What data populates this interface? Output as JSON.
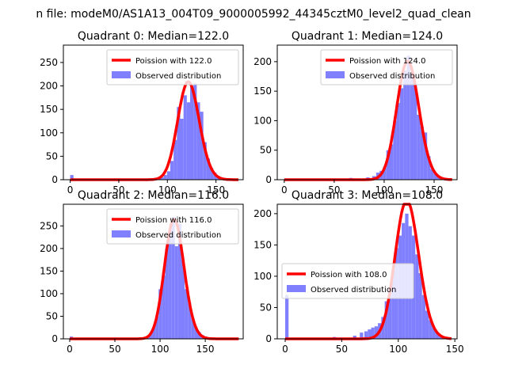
{
  "figure": {
    "suptitle": "n file: modeM0/AS1A13_004T09_9000005992_44345cztM0_level2_quad_clean"
  },
  "colors": {
    "hist": "#8080ff",
    "curve": "#ff0000",
    "axis": "#000000"
  },
  "chart_data": [
    {
      "type": "histogram+line",
      "title": "Quadrant 0: Median=122.0",
      "xlim": [
        -7,
        178
      ],
      "ylim": [
        0,
        287
      ],
      "xticks": [
        0,
        50,
        100,
        150
      ],
      "yticks": [
        0,
        50,
        100,
        150,
        200,
        250
      ],
      "legend_position": "upper right",
      "series": [
        {
          "name": "Poission with 122.0",
          "kind": "line",
          "mean": 122
        },
        {
          "name": "Observed distribution",
          "kind": "hist",
          "bin_width": 3.4,
          "bins": [
            {
              "x": 0,
              "y": 10
            },
            {
              "x": 86,
              "y": 2
            },
            {
              "x": 89.4,
              "y": 3
            },
            {
              "x": 92.8,
              "y": 5
            },
            {
              "x": 96.2,
              "y": 10
            },
            {
              "x": 99.6,
              "y": 18
            },
            {
              "x": 103,
              "y": 40
            },
            {
              "x": 106.4,
              "y": 85
            },
            {
              "x": 109.8,
              "y": 155
            },
            {
              "x": 113.2,
              "y": 130
            },
            {
              "x": 116.6,
              "y": 180
            },
            {
              "x": 120,
              "y": 165
            },
            {
              "x": 123.4,
              "y": 200
            },
            {
              "x": 126.8,
              "y": 205
            },
            {
              "x": 130.2,
              "y": 165
            },
            {
              "x": 133.6,
              "y": 145
            },
            {
              "x": 137,
              "y": 80
            },
            {
              "x": 140.4,
              "y": 45
            },
            {
              "x": 143.8,
              "y": 25
            },
            {
              "x": 147.2,
              "y": 15
            },
            {
              "x": 150.6,
              "y": 8
            },
            {
              "x": 154,
              "y": 5
            },
            {
              "x": 157.4,
              "y": 3
            },
            {
              "x": 160.8,
              "y": 2
            },
            {
              "x": 164.2,
              "y": 1
            }
          ]
        }
      ]
    },
    {
      "type": "histogram+line",
      "title": "Quadrant 1: Median=124.0",
      "xlim": [
        -7,
        173
      ],
      "ylim": [
        0,
        228
      ],
      "xticks": [
        0,
        50,
        100,
        150
      ],
      "yticks": [
        0,
        50,
        100,
        150,
        200
      ],
      "legend_position": "upper right",
      "series": [
        {
          "name": "Poission with 124.0",
          "kind": "line",
          "mean": 124
        },
        {
          "name": "Observed distribution",
          "kind": "hist",
          "bin_width": 3.4,
          "bins": [
            {
              "x": 65,
              "y": 3
            },
            {
              "x": 76,
              "y": 2
            },
            {
              "x": 82,
              "y": 4
            },
            {
              "x": 88,
              "y": 6
            },
            {
              "x": 92,
              "y": 12
            },
            {
              "x": 95.4,
              "y": 15
            },
            {
              "x": 98.8,
              "y": 22
            },
            {
              "x": 102.2,
              "y": 50
            },
            {
              "x": 105.6,
              "y": 60
            },
            {
              "x": 109,
              "y": 100
            },
            {
              "x": 112.4,
              "y": 130
            },
            {
              "x": 115.8,
              "y": 155
            },
            {
              "x": 119.2,
              "y": 185
            },
            {
              "x": 122.6,
              "y": 210
            },
            {
              "x": 126,
              "y": 180
            },
            {
              "x": 129.4,
              "y": 160
            },
            {
              "x": 132.8,
              "y": 110
            },
            {
              "x": 136.2,
              "y": 90
            },
            {
              "x": 139.6,
              "y": 80
            },
            {
              "x": 143,
              "y": 40
            },
            {
              "x": 146.4,
              "y": 18
            },
            {
              "x": 149.8,
              "y": 10
            },
            {
              "x": 153.2,
              "y": 5
            },
            {
              "x": 156.6,
              "y": 2
            }
          ]
        }
      ]
    },
    {
      "type": "histogram+line",
      "title": "Quadrant 2: Median=116.0",
      "xlim": [
        -7,
        192
      ],
      "ylim": [
        0,
        298
      ],
      "xticks": [
        0,
        50,
        100,
        150
      ],
      "yticks": [
        0,
        50,
        100,
        150,
        200,
        250
      ],
      "legend_position": "upper right",
      "series": [
        {
          "name": "Poission with 116.0",
          "kind": "line",
          "mean": 116
        },
        {
          "name": "Observed distribution",
          "kind": "hist",
          "bin_width": 3.6,
          "bins": [
            {
              "x": 0,
              "y": 5
            },
            {
              "x": 80,
              "y": 3
            },
            {
              "x": 84,
              "y": 5
            },
            {
              "x": 87.6,
              "y": 10
            },
            {
              "x": 91.2,
              "y": 25
            },
            {
              "x": 94.8,
              "y": 50
            },
            {
              "x": 98.4,
              "y": 110
            },
            {
              "x": 102,
              "y": 140
            },
            {
              "x": 105.6,
              "y": 200
            },
            {
              "x": 109.2,
              "y": 240
            },
            {
              "x": 112.8,
              "y": 270
            },
            {
              "x": 116.4,
              "y": 205
            },
            {
              "x": 120,
              "y": 255
            },
            {
              "x": 123.6,
              "y": 175
            },
            {
              "x": 127.2,
              "y": 110
            },
            {
              "x": 130.8,
              "y": 80
            },
            {
              "x": 134.4,
              "y": 45
            },
            {
              "x": 138,
              "y": 25
            },
            {
              "x": 141.6,
              "y": 15
            },
            {
              "x": 145.2,
              "y": 8
            },
            {
              "x": 148.8,
              "y": 5
            },
            {
              "x": 152.4,
              "y": 3
            },
            {
              "x": 156,
              "y": 2
            }
          ]
        }
      ]
    },
    {
      "type": "histogram+line",
      "title": "Quadrant 3: Median=108.0",
      "xlim": [
        -7,
        152
      ],
      "ylim": [
        0,
        215
      ],
      "xticks": [
        0,
        50,
        100,
        150
      ],
      "yticks": [
        0,
        50,
        100,
        150,
        200
      ],
      "legend_position": "center left",
      "series": [
        {
          "name": "Poission with 108.0",
          "kind": "line",
          "mean": 108
        },
        {
          "name": "Observed distribution",
          "kind": "hist",
          "bin_width": 3.0,
          "bins": [
            {
              "x": 0,
              "y": 70
            },
            {
              "x": 42,
              "y": 3
            },
            {
              "x": 60,
              "y": 5
            },
            {
              "x": 66,
              "y": 10
            },
            {
              "x": 70,
              "y": 12
            },
            {
              "x": 73,
              "y": 15
            },
            {
              "x": 76,
              "y": 18
            },
            {
              "x": 79,
              "y": 20
            },
            {
              "x": 82,
              "y": 25
            },
            {
              "x": 85,
              "y": 35
            },
            {
              "x": 88,
              "y": 60
            },
            {
              "x": 91,
              "y": 80
            },
            {
              "x": 94,
              "y": 110
            },
            {
              "x": 97,
              "y": 145
            },
            {
              "x": 100,
              "y": 165
            },
            {
              "x": 103,
              "y": 185
            },
            {
              "x": 106,
              "y": 200
            },
            {
              "x": 109,
              "y": 180
            },
            {
              "x": 112,
              "y": 165
            },
            {
              "x": 115,
              "y": 135
            },
            {
              "x": 118,
              "y": 105
            },
            {
              "x": 121,
              "y": 70
            },
            {
              "x": 124,
              "y": 45
            },
            {
              "x": 127,
              "y": 30
            },
            {
              "x": 130,
              "y": 18
            },
            {
              "x": 133,
              "y": 10
            },
            {
              "x": 136,
              "y": 5
            },
            {
              "x": 139,
              "y": 2
            }
          ]
        }
      ]
    }
  ]
}
